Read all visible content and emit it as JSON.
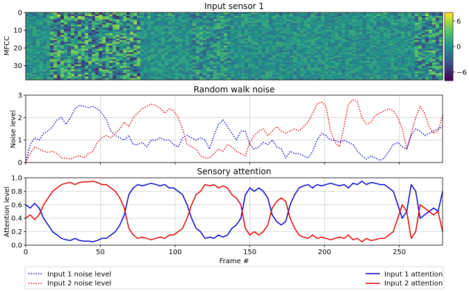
{
  "figure": {
    "x_label": "Frame #",
    "legend": [
      {
        "label": "Input 1 noise level",
        "color": "#0000cc",
        "style": "dotted"
      },
      {
        "label": "Input 2 noise level",
        "color": "#dd0000",
        "style": "dotted"
      },
      {
        "label": "Input 1 attention",
        "color": "#0000cc",
        "style": "solid"
      },
      {
        "label": "Input 2 attention",
        "color": "#dd0000",
        "style": "solid"
      }
    ]
  },
  "chart_data": [
    {
      "type": "heatmap",
      "title": "Input sensor 1",
      "ylabel": "MFCC",
      "rows": 39,
      "columns": 279,
      "yticks": [
        0,
        10,
        20,
        30
      ],
      "colorbar": {
        "colormap": "viridis",
        "ticks": [
          6,
          0,
          -6
        ],
        "tick_labels": [
          "6",
          "0",
          "−6"
        ],
        "range": [
          -8,
          8
        ]
      }
    },
    {
      "type": "line",
      "title": "Random walk noise",
      "ylabel": "Noise level",
      "xlim": [
        0,
        279
      ],
      "ylim": [
        0,
        3
      ],
      "xticks": [
        0,
        50,
        100,
        150,
        200,
        250
      ],
      "yticks": [
        0,
        1,
        2,
        3
      ],
      "grid": true,
      "x": [
        0,
        3,
        6,
        9,
        12,
        15,
        18,
        21,
        24,
        27,
        30,
        33,
        36,
        39,
        42,
        45,
        48,
        51,
        54,
        57,
        60,
        63,
        66,
        69,
        72,
        75,
        78,
        81,
        84,
        87,
        90,
        93,
        96,
        99,
        102,
        105,
        108,
        111,
        114,
        117,
        120,
        123,
        126,
        129,
        132,
        135,
        138,
        141,
        144,
        147,
        150,
        153,
        156,
        159,
        162,
        165,
        168,
        171,
        174,
        177,
        180,
        183,
        186,
        189,
        192,
        195,
        198,
        201,
        204,
        207,
        210,
        213,
        216,
        219,
        222,
        225,
        228,
        231,
        234,
        237,
        240,
        243,
        246,
        249,
        252,
        255,
        258,
        261,
        264,
        267,
        270,
        273,
        276,
        279
      ],
      "series": [
        {
          "name": "Input 1 noise level",
          "color": "#0000cc",
          "values": [
            0.0,
            0.8,
            1.1,
            1.0,
            1.3,
            1.4,
            1.6,
            1.9,
            2.0,
            1.7,
            2.0,
            2.4,
            2.55,
            2.5,
            2.45,
            2.5,
            2.4,
            2.2,
            1.9,
            1.4,
            1.2,
            1.1,
            1.0,
            1.2,
            0.8,
            0.8,
            0.9,
            0.7,
            1.0,
            1.0,
            1.1,
            1.0,
            1.0,
            0.8,
            0.7,
            1.1,
            1.2,
            1.1,
            1.0,
            1.1,
            1.0,
            0.6,
            1.2,
            1.7,
            1.9,
            1.6,
            1.3,
            1.0,
            1.4,
            1.4,
            0.8,
            0.6,
            0.7,
            0.9,
            0.8,
            1.0,
            0.7,
            0.6,
            0.2,
            0.5,
            0.4,
            0.4,
            0.3,
            0.2,
            0.5,
            1.0,
            1.3,
            1.2,
            1.0,
            1.0,
            0.9,
            1.0,
            0.9,
            0.8,
            0.5,
            0.3,
            0.15,
            0.3,
            0.2,
            0.1,
            0.2,
            0.5,
            0.8,
            0.9,
            0.7,
            0.6,
            1.2,
            1.5,
            1.4,
            1.2,
            1.3,
            1.4,
            1.5,
            1.6
          ]
        },
        {
          "name": "Input 2 noise level",
          "color": "#dd0000",
          "values": [
            0.0,
            0.4,
            0.7,
            0.6,
            0.5,
            0.45,
            0.5,
            0.4,
            0.2,
            0.2,
            0.15,
            0.25,
            0.3,
            0.2,
            0.4,
            0.5,
            0.9,
            1.1,
            1.2,
            1.1,
            1.3,
            1.5,
            1.8,
            1.6,
            2.0,
            2.2,
            2.4,
            2.5,
            2.6,
            2.55,
            2.4,
            2.2,
            2.4,
            2.3,
            2.0,
            1.5,
            0.8,
            0.7,
            0.6,
            0.3,
            0.2,
            0.2,
            0.4,
            0.6,
            0.5,
            0.8,
            0.7,
            0.5,
            0.4,
            0.3,
            0.9,
            1.2,
            1.4,
            1.5,
            1.2,
            1.4,
            1.6,
            1.4,
            1.3,
            1.4,
            1.5,
            1.4,
            1.6,
            1.8,
            2.2,
            2.6,
            2.7,
            2.5,
            1.4,
            0.9,
            0.7,
            1.6,
            2.6,
            2.8,
            2.7,
            2.0,
            1.7,
            1.8,
            2.1,
            2.2,
            2.3,
            2.4,
            2.3,
            2.0,
            1.5,
            0.6,
            1.3,
            2.0,
            2.5,
            2.2,
            1.6,
            1.3,
            1.4,
            2.1
          ]
        }
      ]
    },
    {
      "type": "line",
      "title": "Sensory attention",
      "ylabel": "Attention level",
      "xlim": [
        0,
        279
      ],
      "ylim": [
        0.0,
        1.0
      ],
      "xticks": [
        0,
        50,
        100,
        150,
        200,
        250
      ],
      "yticks": [
        0.0,
        0.2,
        0.4,
        0.6,
        0.8,
        1.0
      ],
      "grid": true,
      "x": [
        0,
        3,
        6,
        9,
        12,
        15,
        18,
        21,
        24,
        27,
        30,
        33,
        36,
        39,
        42,
        45,
        48,
        51,
        54,
        57,
        60,
        63,
        66,
        69,
        72,
        75,
        78,
        81,
        84,
        87,
        90,
        93,
        96,
        99,
        102,
        105,
        108,
        111,
        114,
        117,
        120,
        123,
        126,
        129,
        132,
        135,
        138,
        141,
        144,
        147,
        150,
        153,
        156,
        159,
        162,
        165,
        168,
        171,
        174,
        177,
        180,
        183,
        186,
        189,
        192,
        195,
        198,
        201,
        204,
        207,
        210,
        213,
        216,
        219,
        222,
        225,
        228,
        231,
        234,
        237,
        240,
        243,
        246,
        249,
        252,
        255,
        258,
        261,
        264,
        267,
        270,
        273,
        276,
        279
      ],
      "series": [
        {
          "name": "Input 1 attention",
          "color": "#0000cc",
          "values": [
            0.6,
            0.55,
            0.62,
            0.55,
            0.4,
            0.3,
            0.2,
            0.15,
            0.1,
            0.08,
            0.07,
            0.1,
            0.07,
            0.06,
            0.06,
            0.05,
            0.07,
            0.1,
            0.1,
            0.15,
            0.2,
            0.3,
            0.45,
            0.75,
            0.85,
            0.9,
            0.88,
            0.9,
            0.92,
            0.9,
            0.88,
            0.9,
            0.85,
            0.85,
            0.8,
            0.75,
            0.6,
            0.4,
            0.25,
            0.2,
            0.1,
            0.12,
            0.1,
            0.15,
            0.12,
            0.15,
            0.25,
            0.3,
            0.4,
            0.75,
            0.85,
            0.8,
            0.85,
            0.8,
            0.7,
            0.45,
            0.35,
            0.3,
            0.35,
            0.6,
            0.75,
            0.85,
            0.88,
            0.9,
            0.85,
            0.9,
            0.88,
            0.9,
            0.92,
            0.9,
            0.88,
            0.9,
            0.85,
            0.92,
            0.9,
            0.95,
            0.9,
            0.93,
            0.92,
            0.9,
            0.9,
            0.85,
            0.8,
            0.6,
            0.4,
            0.5,
            0.9,
            0.8,
            0.4,
            0.45,
            0.5,
            0.55,
            0.5,
            0.8
          ]
        },
        {
          "name": "Input 2 attention",
          "color": "#dd0000",
          "values": [
            0.4,
            0.45,
            0.38,
            0.45,
            0.6,
            0.7,
            0.8,
            0.85,
            0.9,
            0.92,
            0.93,
            0.9,
            0.93,
            0.94,
            0.94,
            0.95,
            0.93,
            0.9,
            0.9,
            0.85,
            0.8,
            0.7,
            0.55,
            0.25,
            0.15,
            0.1,
            0.12,
            0.1,
            0.08,
            0.1,
            0.12,
            0.1,
            0.15,
            0.15,
            0.2,
            0.25,
            0.4,
            0.6,
            0.75,
            0.8,
            0.9,
            0.88,
            0.9,
            0.85,
            0.88,
            0.85,
            0.75,
            0.7,
            0.6,
            0.25,
            0.15,
            0.2,
            0.15,
            0.2,
            0.3,
            0.55,
            0.65,
            0.7,
            0.65,
            0.4,
            0.25,
            0.15,
            0.12,
            0.1,
            0.15,
            0.1,
            0.12,
            0.1,
            0.08,
            0.1,
            0.12,
            0.1,
            0.15,
            0.08,
            0.1,
            0.05,
            0.1,
            0.07,
            0.08,
            0.1,
            0.1,
            0.15,
            0.2,
            0.4,
            0.6,
            0.5,
            0.1,
            0.2,
            0.6,
            0.55,
            0.5,
            0.45,
            0.5,
            0.2
          ]
        }
      ]
    }
  ]
}
